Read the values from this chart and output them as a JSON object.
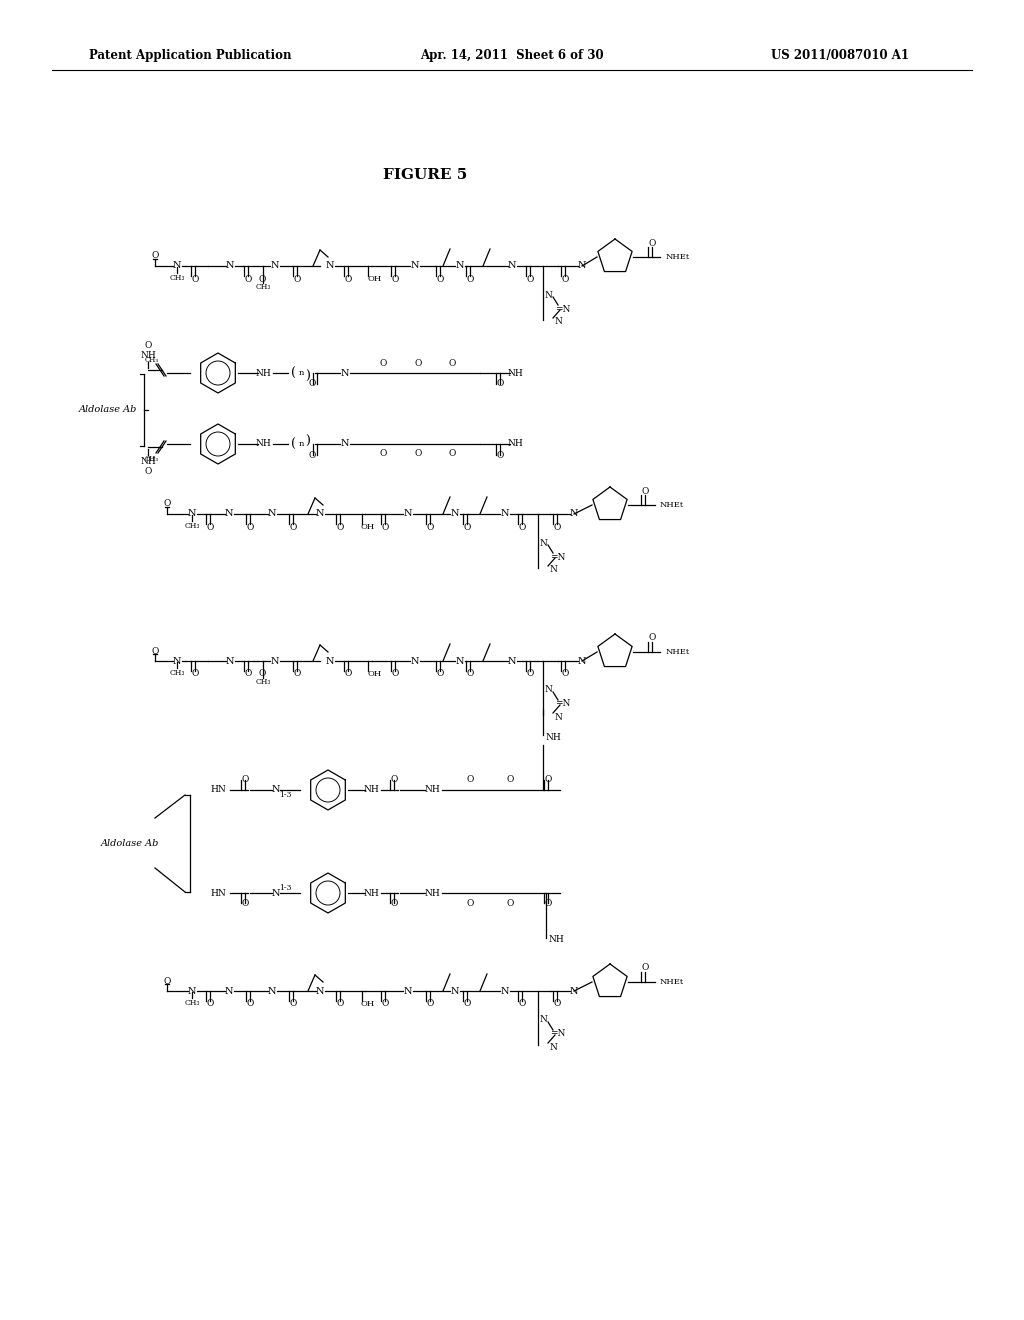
{
  "header_left": "Patent Application Publication",
  "header_center": "Apr. 14, 2011  Sheet 6 of 30",
  "header_right": "US 2011/0087010 A1",
  "figure_title": "FIGURE 5",
  "aldolase_label": "Aldolase Ab",
  "bg": "#ffffff"
}
